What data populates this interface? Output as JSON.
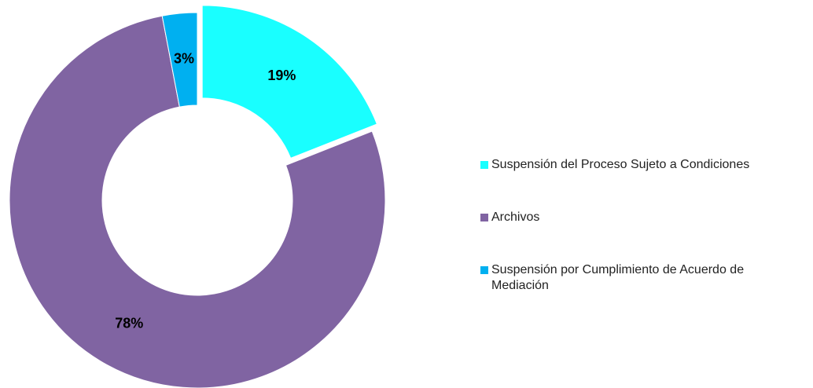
{
  "chart_data": {
    "type": "pie",
    "categories": [
      "Suspensión del Proceso Sujeto a Condiciones",
      "Archivos",
      "Suspensión por Cumplimiento de Acuerdo de Mediación"
    ],
    "values": [
      19,
      78,
      3
    ],
    "value_labels": [
      "19%",
      "78%",
      "3%"
    ],
    "colors": [
      "#19ffff",
      "#8064a2",
      "#00b0f0"
    ],
    "legend": "right"
  }
}
